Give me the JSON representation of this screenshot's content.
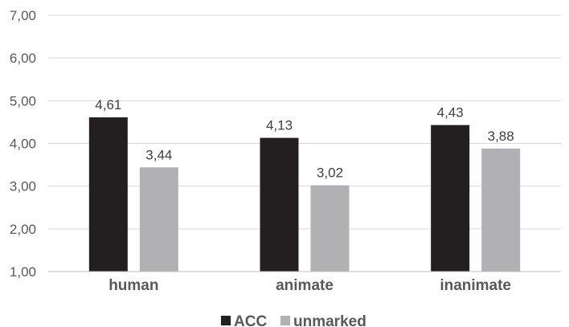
{
  "chart_data": {
    "type": "bar",
    "categories": [
      "human",
      "animate",
      "inanimate"
    ],
    "series": [
      {
        "name": "ACC",
        "values": [
          4.61,
          4.13,
          4.43
        ],
        "value_labels": [
          "4,61",
          "4,13",
          "4,43"
        ],
        "color": "#231f20"
      },
      {
        "name": "unmarked",
        "values": [
          3.44,
          3.02,
          3.88
        ],
        "value_labels": [
          "3,44",
          "3,02",
          "3,88"
        ],
        "color": "#b1b1b3"
      }
    ],
    "ylim": [
      1,
      7
    ],
    "yticks": [
      1,
      2,
      3,
      4,
      5,
      6,
      7
    ],
    "ytick_labels": [
      "1,00",
      "2,00",
      "3,00",
      "4,00",
      "5,00",
      "6,00",
      "7,00"
    ],
    "grid": true,
    "legend": "bottom-center",
    "gridline_color": "#d9d9d9",
    "axis_color": "#bfbfbf"
  }
}
